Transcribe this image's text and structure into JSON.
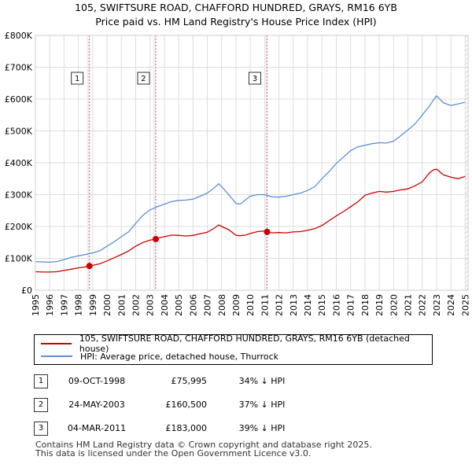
{
  "header": {
    "title": "105, SWIFTSURE ROAD, CHAFFORD HUNDRED, GRAYS, RM16 6YB",
    "subtitle": "Price paid vs. HM Land Registry's House Price Index (HPI)"
  },
  "legend": {
    "items": [
      {
        "label": "105, SWIFTSURE ROAD, CHAFFORD HUNDRED, GRAYS, RM16 6YB (detached house)",
        "color": "#cc0000"
      },
      {
        "label": "HPI: Average price, detached house, Thurrock",
        "color": "#5b8fd6"
      }
    ]
  },
  "transactions": [
    {
      "num": "1",
      "date": "09-OCT-1998",
      "price": "£75,995",
      "hpi": "34% ↓ HPI"
    },
    {
      "num": "2",
      "date": "24-MAY-2003",
      "price": "£160,500",
      "hpi": "37% ↓ HPI"
    },
    {
      "num": "3",
      "date": "04-MAR-2011",
      "price": "£183,000",
      "hpi": "39% ↓ HPI"
    }
  ],
  "footer": {
    "line1": "Contains HM Land Registry data © Crown copyright and database right 2025.",
    "line2": "This data is licensed under the Open Government Licence v3.0."
  },
  "chart_data": {
    "type": "line",
    "title": "105, SWIFTSURE ROAD, CHAFFORD HUNDRED, GRAYS, RM16 6YB",
    "subtitle": "Price paid vs. HM Land Registry's House Price Index (HPI)",
    "xlabel": "",
    "ylabel": "",
    "xlim": [
      1995,
      2025.2
    ],
    "ylim": [
      0,
      800000
    ],
    "y_ticks": [
      0,
      100000,
      200000,
      300000,
      400000,
      500000,
      600000,
      700000,
      800000
    ],
    "y_tick_labels": [
      "£0",
      "£100K",
      "£200K",
      "£300K",
      "£400K",
      "£500K",
      "£600K",
      "£700K",
      "£800K"
    ],
    "x_ticks": [
      1995,
      1996,
      1997,
      1998,
      1999,
      2000,
      2001,
      2002,
      2003,
      2004,
      2005,
      2006,
      2007,
      2008,
      2009,
      2010,
      2011,
      2012,
      2013,
      2014,
      2015,
      2016,
      2017,
      2018,
      2019,
      2020,
      2021,
      2022,
      2023,
      2024,
      2025
    ],
    "x_tick_labels": [
      "1995",
      "1996",
      "1997",
      "1998",
      "1999",
      "2000",
      "2001",
      "2002",
      "2003",
      "2004",
      "2005",
      "2006",
      "2007",
      "2008",
      "2009",
      "2010",
      "2011",
      "2012",
      "2013",
      "2014",
      "2015",
      "2016",
      "2017",
      "2018",
      "2019",
      "2020",
      "2021",
      "2022",
      "2023",
      "2024",
      "2025"
    ],
    "grid": true,
    "series": [
      {
        "name": "105, SWIFTSURE ROAD, CHAFFORD HUNDRED, GRAYS, RM16 6YB (detached house)",
        "color": "#cc0000",
        "x": [
          1995.0,
          1995.5,
          1996.0,
          1996.5,
          1997.0,
          1997.5,
          1998.0,
          1998.5,
          1998.77,
          1999.0,
          1999.5,
          2000.0,
          2000.5,
          2001.0,
          2001.5,
          2002.0,
          2002.5,
          2003.0,
          2003.4,
          2003.7,
          2004.0,
          2004.5,
          2005.0,
          2005.5,
          2006.0,
          2006.5,
          2007.0,
          2007.5,
          2007.8,
          2008.0,
          2008.5,
          2009.0,
          2009.3,
          2009.7,
          2010.0,
          2010.5,
          2011.0,
          2011.17,
          2011.5,
          2012.0,
          2012.5,
          2013.0,
          2013.5,
          2014.0,
          2014.5,
          2015.0,
          2015.5,
          2016.0,
          2016.5,
          2017.0,
          2017.5,
          2018.0,
          2018.5,
          2019.0,
          2019.5,
          2020.0,
          2020.5,
          2021.0,
          2021.5,
          2022.0,
          2022.5,
          2022.8,
          2023.0,
          2023.5,
          2024.0,
          2024.5,
          2025.0
        ],
        "values": [
          58000,
          57000,
          57000,
          58000,
          62000,
          66000,
          70000,
          73000,
          75995,
          78000,
          83000,
          92000,
          102000,
          112000,
          123000,
          138000,
          150000,
          157000,
          160500,
          165000,
          168000,
          173000,
          172000,
          170000,
          172000,
          177000,
          182000,
          195000,
          205000,
          200000,
          190000,
          172000,
          171000,
          173000,
          178000,
          184000,
          186000,
          183000,
          180000,
          181000,
          180000,
          183000,
          184000,
          188000,
          193000,
          203000,
          218000,
          233000,
          247000,
          262000,
          277000,
          298000,
          305000,
          310000,
          308000,
          310000,
          315000,
          318000,
          328000,
          340000,
          368000,
          378000,
          380000,
          362000,
          355000,
          350000,
          357000
        ]
      },
      {
        "name": "HPI: Average price, detached house, Thurrock",
        "color": "#5b8fd6",
        "x": [
          1995.0,
          1995.5,
          1996.0,
          1996.5,
          1997.0,
          1997.5,
          1998.0,
          1998.5,
          1999.0,
          1999.5,
          2000.0,
          2000.5,
          2001.0,
          2001.5,
          2002.0,
          2002.5,
          2003.0,
          2003.5,
          2004.0,
          2004.5,
          2005.0,
          2005.5,
          2006.0,
          2006.5,
          2007.0,
          2007.5,
          2007.8,
          2008.0,
          2008.5,
          2009.0,
          2009.3,
          2009.7,
          2010.0,
          2010.5,
          2011.0,
          2011.5,
          2012.0,
          2012.5,
          2013.0,
          2013.5,
          2014.0,
          2014.5,
          2015.0,
          2015.5,
          2016.0,
          2016.5,
          2017.0,
          2017.5,
          2018.0,
          2018.5,
          2019.0,
          2019.5,
          2020.0,
          2020.5,
          2021.0,
          2021.5,
          2022.0,
          2022.5,
          2022.8,
          2023.0,
          2023.5,
          2024.0,
          2024.5,
          2025.0
        ],
        "values": [
          90000,
          89000,
          88000,
          90000,
          96000,
          103000,
          108000,
          112000,
          117000,
          124000,
          138000,
          152000,
          168000,
          183000,
          210000,
          235000,
          252000,
          262000,
          270000,
          278000,
          282000,
          283000,
          286000,
          295000,
          305000,
          322000,
          334000,
          325000,
          300000,
          272000,
          270000,
          285000,
          295000,
          300000,
          300000,
          293000,
          292000,
          295000,
          300000,
          305000,
          313000,
          325000,
          350000,
          372000,
          398000,
          418000,
          438000,
          450000,
          455000,
          460000,
          463000,
          462000,
          468000,
          485000,
          503000,
          522000,
          550000,
          578000,
          598000,
          610000,
          588000,
          580000,
          585000,
          590000
        ]
      }
    ],
    "markers": [
      {
        "label": "1",
        "x": 1998.77,
        "value": 75995
      },
      {
        "label": "2",
        "x": 2003.4,
        "value": 160500
      },
      {
        "label": "3",
        "x": 2011.17,
        "value": 183000
      }
    ]
  }
}
